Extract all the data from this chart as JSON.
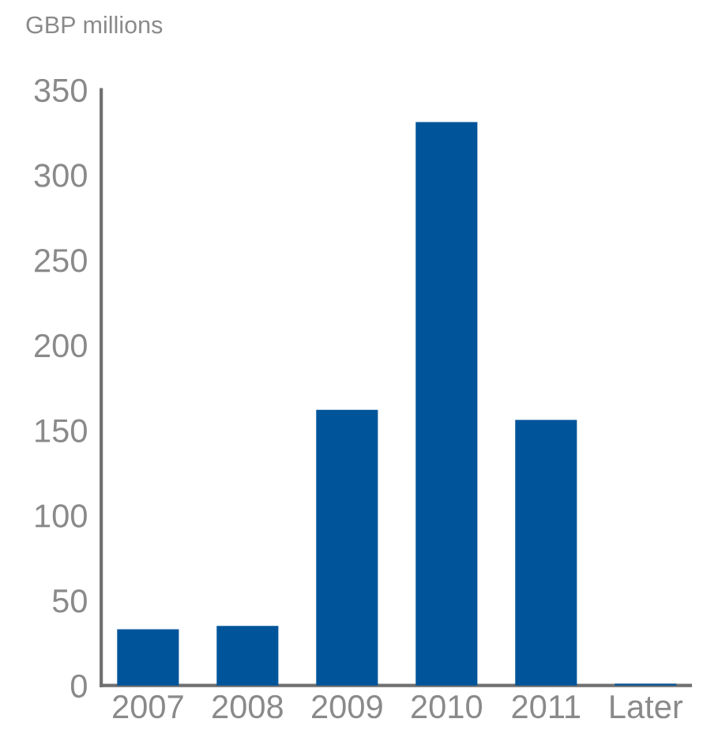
{
  "chart_data": {
    "type": "bar",
    "ylabel": "GBP millions",
    "categories": [
      "2007",
      "2008",
      "2009",
      "2010",
      "2011",
      "Later"
    ],
    "values": [
      33,
      35,
      162,
      331,
      156,
      1
    ],
    "color": "#00559a",
    "ylim": [
      0,
      350
    ],
    "yticks": [
      0,
      50,
      100,
      150,
      200,
      250,
      300,
      350
    ],
    "grid": false,
    "legend": false
  }
}
